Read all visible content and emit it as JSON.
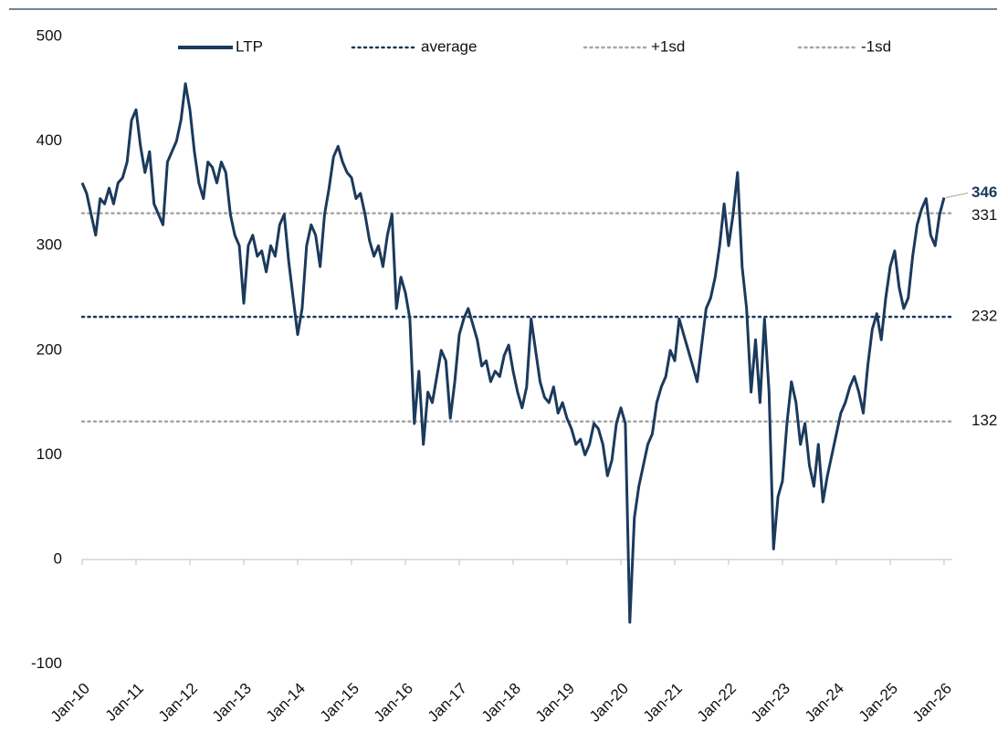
{
  "chart_data": {
    "type": "line",
    "x": [
      "Jan-10",
      "Feb-10",
      "Mar-10",
      "Apr-10",
      "May-10",
      "Jun-10",
      "Jul-10",
      "Aug-10",
      "Sep-10",
      "Oct-10",
      "Nov-10",
      "Dec-10",
      "Jan-11",
      "Feb-11",
      "Mar-11",
      "Apr-11",
      "May-11",
      "Jun-11",
      "Jul-11",
      "Aug-11",
      "Sep-11",
      "Oct-11",
      "Nov-11",
      "Dec-11",
      "Jan-12",
      "Feb-12",
      "Mar-12",
      "Apr-12",
      "May-12",
      "Jun-12",
      "Jul-12",
      "Aug-12",
      "Sep-12",
      "Oct-12",
      "Nov-12",
      "Dec-12",
      "Jan-13",
      "Feb-13",
      "Mar-13",
      "Apr-13",
      "May-13",
      "Jun-13",
      "Jul-13",
      "Aug-13",
      "Sep-13",
      "Oct-13",
      "Nov-13",
      "Dec-13",
      "Jan-14",
      "Feb-14",
      "Mar-14",
      "Apr-14",
      "May-14",
      "Jun-14",
      "Jul-14",
      "Aug-14",
      "Sep-14",
      "Oct-14",
      "Nov-14",
      "Dec-14",
      "Jan-15",
      "Feb-15",
      "Mar-15",
      "Apr-15",
      "May-15",
      "Jun-15",
      "Jul-15",
      "Aug-15",
      "Sep-15",
      "Oct-15",
      "Nov-15",
      "Dec-15",
      "Jan-16",
      "Feb-16",
      "Mar-16",
      "Apr-16",
      "May-16",
      "Jun-16",
      "Jul-16",
      "Aug-16",
      "Sep-16",
      "Oct-16",
      "Nov-16",
      "Dec-16",
      "Jan-17",
      "Feb-17",
      "Mar-17",
      "Apr-17",
      "May-17",
      "Jun-17",
      "Jul-17",
      "Aug-17",
      "Sep-17",
      "Oct-17",
      "Nov-17",
      "Dec-17",
      "Jan-18",
      "Feb-18",
      "Mar-18",
      "Apr-18",
      "May-18",
      "Jun-18",
      "Jul-18",
      "Aug-18",
      "Sep-18",
      "Oct-18",
      "Nov-18",
      "Dec-18",
      "Jan-19",
      "Feb-19",
      "Mar-19",
      "Apr-19",
      "May-19",
      "Jun-19",
      "Jul-19",
      "Aug-19",
      "Sep-19",
      "Oct-19",
      "Nov-19",
      "Dec-19",
      "Jan-20",
      "Feb-20",
      "Mar-20",
      "Apr-20",
      "May-20",
      "Jun-20",
      "Jul-20",
      "Aug-20",
      "Sep-20",
      "Oct-20",
      "Nov-20",
      "Dec-20",
      "Jan-21",
      "Feb-21",
      "Mar-21",
      "Apr-21",
      "May-21",
      "Jun-21",
      "Jul-21",
      "Aug-21",
      "Sep-21",
      "Oct-21",
      "Nov-21",
      "Dec-21",
      "Jan-22",
      "Feb-22",
      "Mar-22",
      "Apr-22",
      "May-22",
      "Jun-22",
      "Jul-22",
      "Aug-22",
      "Sep-22",
      "Oct-22",
      "Nov-22",
      "Dec-22",
      "Jan-23",
      "Feb-23",
      "Mar-23",
      "Apr-23",
      "May-23",
      "Jun-23",
      "Jul-23",
      "Aug-23",
      "Sep-23",
      "Oct-23",
      "Nov-23",
      "Dec-23",
      "Jan-24",
      "Feb-24",
      "Mar-24",
      "Apr-24",
      "May-24",
      "Jun-24",
      "Jul-24",
      "Aug-24",
      "Sep-24",
      "Oct-24",
      "Nov-24",
      "Dec-24",
      "Jan-25",
      "Feb-25",
      "Mar-25",
      "Apr-25",
      "May-25",
      "Jun-25",
      "Jul-25",
      "Aug-25",
      "Sep-25",
      "Oct-25",
      "Nov-25",
      "Dec-25",
      "Jan-26"
    ],
    "series": [
      {
        "name": "LTP",
        "color": "#1b3a5c",
        "values": [
          360,
          350,
          330,
          310,
          345,
          340,
          355,
          340,
          360,
          365,
          380,
          420,
          430,
          395,
          370,
          390,
          340,
          330,
          320,
          380,
          390,
          400,
          420,
          455,
          430,
          390,
          360,
          345,
          380,
          375,
          360,
          380,
          370,
          330,
          310,
          300,
          245,
          300,
          310,
          290,
          295,
          275,
          300,
          290,
          320,
          330,
          285,
          250,
          215,
          240,
          300,
          320,
          310,
          280,
          330,
          355,
          385,
          395,
          380,
          370,
          365,
          345,
          350,
          330,
          305,
          290,
          300,
          280,
          310,
          330,
          240,
          270,
          255,
          230,
          130,
          180,
          110,
          160,
          150,
          175,
          200,
          190,
          135,
          170,
          215,
          230,
          240,
          225,
          210,
          185,
          190,
          170,
          180,
          175,
          195,
          205,
          180,
          160,
          145,
          165,
          230,
          200,
          170,
          155,
          150,
          165,
          140,
          150,
          135,
          125,
          110,
          115,
          100,
          110,
          130,
          125,
          110,
          80,
          95,
          130,
          145,
          130,
          -60,
          40,
          70,
          90,
          110,
          120,
          150,
          165,
          175,
          200,
          190,
          230,
          215,
          200,
          185,
          170,
          205,
          240,
          250,
          270,
          300,
          340,
          300,
          330,
          370,
          280,
          240,
          160,
          210,
          150,
          230,
          160,
          10,
          60,
          75,
          130,
          170,
          150,
          110,
          130,
          90,
          70,
          110,
          55,
          80,
          100,
          120,
          140,
          150,
          165,
          175,
          160,
          140,
          185,
          220,
          235,
          210,
          250,
          280,
          295,
          260,
          240,
          250,
          290,
          320,
          335,
          345,
          310,
          300,
          330,
          346
        ]
      }
    ],
    "hlines": [
      {
        "name": "average",
        "value": 232,
        "color": "#17375e"
      },
      {
        "name": "+1sd",
        "value": 331,
        "color": "#a6a6a6"
      },
      {
        "name": "-1sd",
        "value": 132,
        "color": "#a6a6a6"
      }
    ],
    "xticks": [
      "Jan-10",
      "Jan-11",
      "Jan-12",
      "Jan-13",
      "Jan-14",
      "Jan-15",
      "Jan-16",
      "Jan-17",
      "Jan-18",
      "Jan-19",
      "Jan-20",
      "Jan-21",
      "Jan-22",
      "Jan-23",
      "Jan-24",
      "Jan-25",
      "Jan-26"
    ],
    "ylim": [
      -100,
      500
    ],
    "yticks": [
      -100,
      0,
      100,
      200,
      300,
      400,
      500
    ]
  }
}
